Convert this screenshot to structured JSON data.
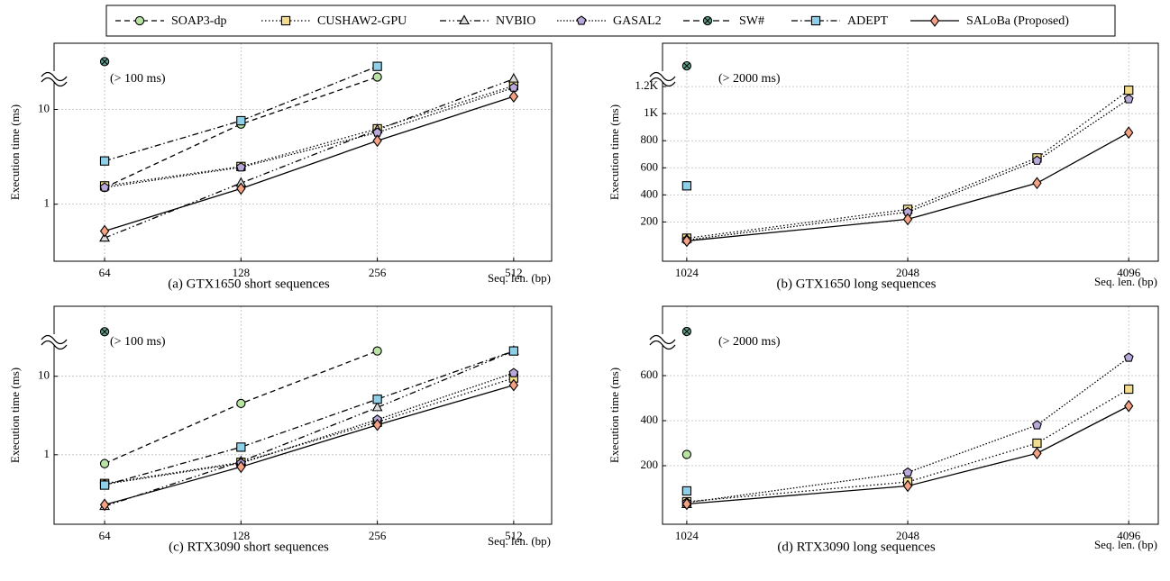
{
  "legend": [
    {
      "name": "SOAP3-dp",
      "color": "#b8e3a3",
      "marker": "circle",
      "dash": "6 4"
    },
    {
      "name": "CUSHAW2-GPU",
      "color": "#f2dd8f",
      "marker": "square",
      "dash": "1.5 2.5"
    },
    {
      "name": "NVBIO",
      "color": "#dcdcdc",
      "marker": "triangle",
      "dash": "7 3 1.5 3 1.5 3"
    },
    {
      "name": "GASAL2",
      "color": "#b9a8da",
      "marker": "pentagon",
      "dash": "1.5 2"
    },
    {
      "name": "SW#",
      "color": "#5e9d8c",
      "marker": "xcircle",
      "dash": "7 4"
    },
    {
      "name": "ADEPT",
      "color": "#8fd0e8",
      "marker": "square",
      "dash": "7 3 1.5 3"
    },
    {
      "name": "SALoBa (Proposed)",
      "color": "#f4a283",
      "marker": "diamond",
      "dash": ""
    }
  ],
  "chart_data": [
    {
      "type": "line",
      "caption": "(a) GTX1650 short sequences",
      "x_label": "Seq. len. (bp)",
      "y_label": "Execution time (ms)",
      "annotation": "(> 100 ms)",
      "xlog": true,
      "ylog": true,
      "grid": true,
      "x": [
        64,
        128,
        256,
        512
      ],
      "xlim": [
        49.5,
        621
      ],
      "xticks": [
        64,
        128,
        256,
        512
      ],
      "ylim": [
        0.25,
        50
      ],
      "yticks": [
        1,
        10
      ],
      "series": [
        {
          "values": [
            1.5,
            7,
            22,
            null
          ]
        },
        {
          "values": [
            1.56,
            2.5,
            6.25,
            17.8
          ]
        },
        {
          "values": [
            0.44,
            1.67,
            6.1,
            21
          ]
        },
        {
          "values": [
            1.5,
            2.45,
            5.7,
            17
          ]
        },
        {
          "values": [
            32,
            null,
            null,
            null
          ]
        },
        {
          "values": [
            2.86,
            7.6,
            28.5,
            null
          ]
        },
        {
          "values": [
            0.52,
            1.46,
            4.67,
            13.7
          ]
        }
      ]
    },
    {
      "type": "line",
      "caption": "(b) GTX1650 long sequences",
      "x_label": "Seq. len. (bp)",
      "y_label": "Execution time (ms)",
      "annotation": "(> 2000 ms)",
      "xlog": true,
      "ylog": false,
      "grid": true,
      "x": [
        1024,
        2048,
        3072,
        4096
      ],
      "xlim": [
        949,
        4494
      ],
      "xticks": [
        1024,
        2048,
        4096
      ],
      "ylim": [
        -90,
        1520
      ],
      "yticks": [
        200,
        400,
        600,
        800,
        {
          "value": 1000,
          "label": "1K"
        },
        {
          "value": 1200,
          "label": "1.2K"
        }
      ],
      "series": [
        {
          "values": [
            null,
            null,
            null,
            null
          ]
        },
        {
          "values": [
            80,
            293,
            673,
            1173
          ]
        },
        {
          "values": [
            73,
            null,
            null,
            null
          ]
        },
        {
          "values": [
            67,
            273,
            653,
            1107
          ]
        },
        {
          "values": [
            1353,
            null,
            null,
            null
          ]
        },
        {
          "values": [
            467,
            null,
            null,
            null
          ]
        },
        {
          "values": [
            60,
            220,
            487,
            860
          ]
        }
      ]
    },
    {
      "type": "line",
      "caption": "(c) RTX3090 short sequences",
      "x_label": "Seq. len. (bp)",
      "y_label": "Execution time (ms)",
      "annotation": "(> 100 ms)",
      "xlog": true,
      "ylog": true,
      "grid": true,
      "x": [
        64,
        128,
        256,
        512
      ],
      "xlim": [
        49.5,
        621
      ],
      "xticks": [
        64,
        128,
        256,
        512
      ],
      "ylim": [
        0.13,
        78
      ],
      "yticks": [
        1,
        10
      ],
      "series": [
        {
          "values": [
            0.77,
            4.5,
            21,
            null
          ]
        },
        {
          "values": [
            0.43,
            0.8,
            2.6,
            9.5
          ]
        },
        {
          "values": [
            0.22,
            0.82,
            4,
            21
          ]
        },
        {
          "values": [
            0.42,
            0.78,
            2.8,
            11
          ]
        },
        {
          "values": [
            37,
            null,
            null,
            null
          ]
        },
        {
          "values": [
            0.41,
            1.25,
            5.1,
            21
          ]
        },
        {
          "values": [
            0.23,
            0.7,
            2.4,
            7.7
          ]
        }
      ]
    },
    {
      "type": "line",
      "caption": "(d) RTX3090 long sequences",
      "x_label": "Seq. len. (bp)",
      "y_label": "Execution time (ms)",
      "annotation": "(> 2000 ms)",
      "xlog": true,
      "ylog": false,
      "grid": true,
      "x": [
        1024,
        2048,
        3072,
        4096
      ],
      "xlim": [
        949,
        4494
      ],
      "xticks": [
        1024,
        2048,
        4096
      ],
      "ylim": [
        -60,
        908
      ],
      "yticks": [
        200,
        400,
        600
      ],
      "series": [
        {
          "values": [
            250,
            null,
            null,
            null
          ]
        },
        {
          "values": [
            40,
            128,
            300,
            540
          ]
        },
        {
          "values": [
            28,
            null,
            null,
            null
          ]
        },
        {
          "values": [
            36,
            170,
            380,
            680
          ]
        },
        {
          "values": [
            796,
            null,
            null,
            null
          ]
        },
        {
          "values": [
            88,
            null,
            null,
            null
          ]
        },
        {
          "values": [
            30,
            110,
            255,
            465
          ]
        }
      ]
    }
  ]
}
